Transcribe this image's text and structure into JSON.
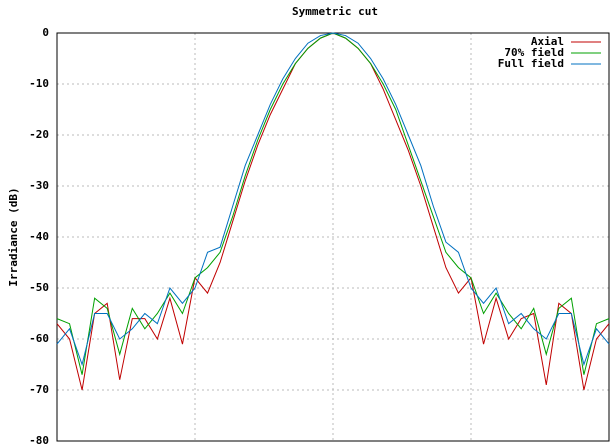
{
  "chart_data": {
    "type": "line",
    "title": "Symmetric cut",
    "y_label": "Irradiance (dB)",
    "categories": [
      null,
      null,
      null,
      null,
      null,
      null,
      null,
      null,
      null,
      null,
      null,
      null,
      null,
      null,
      null,
      null,
      null,
      null,
      null,
      null,
      null,
      null,
      null,
      null,
      null,
      null,
      null,
      null,
      null,
      null,
      null,
      null,
      null,
      null,
      null,
      null,
      null,
      null,
      null,
      null,
      null,
      null,
      null,
      null,
      null
    ],
    "series": [
      {
        "name": "Axial",
        "color": "#c00000",
        "values": [
          -57,
          -60,
          -70,
          -55,
          -53,
          -68,
          -56,
          -56,
          -60,
          -52,
          -61,
          -48,
          -51,
          -45,
          -37,
          -29,
          -22,
          -16,
          -11,
          -6,
          -3,
          -1,
          0,
          -1,
          -3,
          -6,
          -11,
          -17,
          -23,
          -30,
          -38,
          -46,
          -51,
          -48,
          -61,
          -52,
          -60,
          -56,
          -55,
          -69,
          -53,
          -55,
          -70,
          -60,
          -57
        ]
      },
      {
        "name": "70% field",
        "color": "#00a000",
        "values": [
          -56,
          -57,
          -67,
          -52,
          -54,
          -63,
          -54,
          -58,
          -55,
          -51,
          -55,
          -48,
          -46,
          -43,
          -36,
          -28,
          -21,
          -15,
          -10,
          -6,
          -3,
          -1,
          0,
          -1,
          -3,
          -6,
          -10,
          -15,
          -22,
          -29,
          -36,
          -43,
          -46,
          -48,
          -55,
          -51,
          -55,
          -58,
          -54,
          -63,
          -54,
          -52,
          -67,
          -57,
          -56
        ]
      },
      {
        "name": "Full field",
        "color": "#0070c0",
        "values": [
          -61,
          -58,
          -65,
          -55,
          -55,
          -60,
          -58,
          -55,
          -57,
          -50,
          -53,
          -50,
          -43,
          -42,
          -34,
          -26,
          -20,
          -14,
          -9,
          -5,
          -2,
          -0.5,
          0,
          -0.5,
          -2,
          -5,
          -9,
          -14,
          -20,
          -26,
          -34,
          -41,
          -43,
          -50,
          -53,
          -50,
          -57,
          -55,
          -58,
          -60,
          -55,
          -55,
          -65,
          -58,
          -61
        ]
      }
    ],
    "ylim": [
      -80,
      0
    ],
    "yticks": [
      -80,
      -70,
      -60,
      -50,
      -40,
      -30,
      -20,
      -10,
      0
    ],
    "grid": true,
    "legend": "upper right"
  }
}
